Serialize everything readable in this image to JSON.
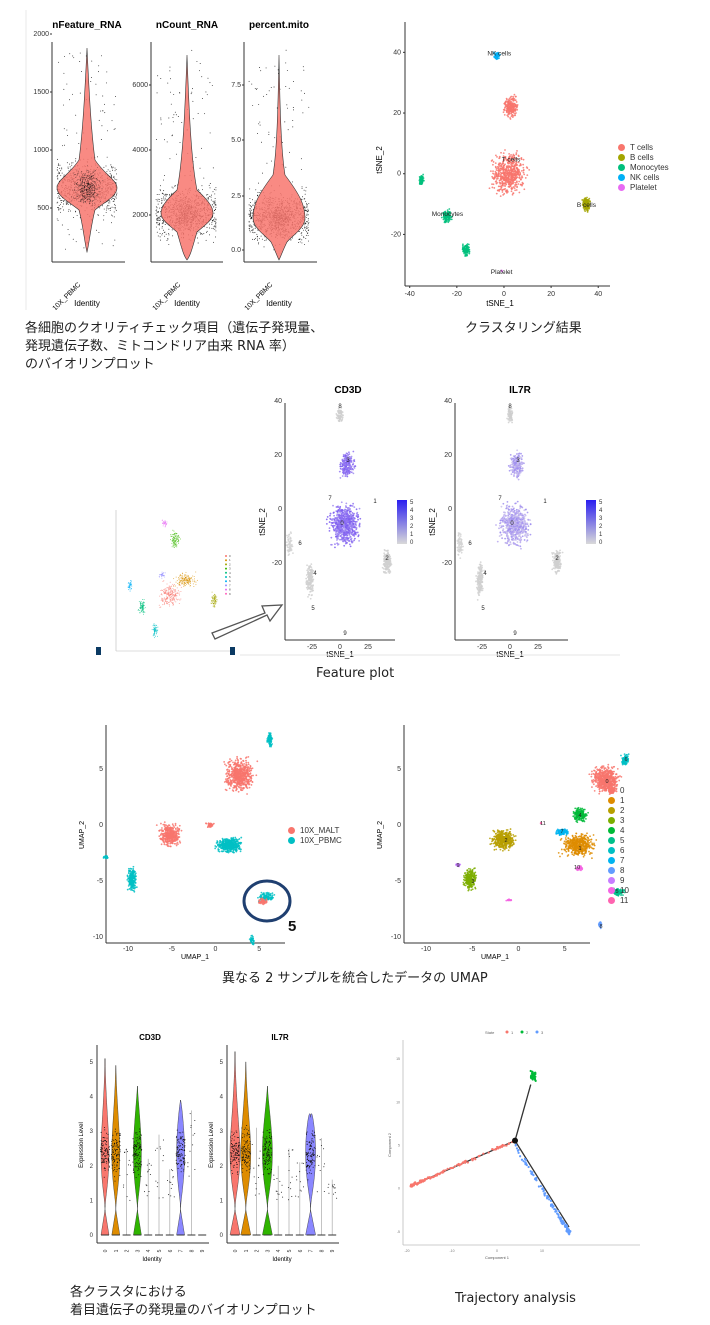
{
  "captions": {
    "qc_violin": [
      "各細胞のクオリティチェック項目（遺伝子発現量、",
      "発現遺伝子数、ミトコンドリア由来 RNA 率）",
      "のバイオリンプロット"
    ],
    "clustering": "クラスタリング結果",
    "feature_plot": "Feature plot",
    "umap": "異なる 2 サンプルを統合したデータの UMAP",
    "cluster_violin": [
      "各クラスタにおける",
      "着目遺伝子の発現量のバイオリンプロット"
    ],
    "trajectory": "Trajectory analysis"
  },
  "annotation": {
    "umap_circle_label": "5"
  },
  "chart_data": [
    {
      "id": "qc_violin",
      "type": "violin",
      "panels": [
        {
          "title": "nFeature_RNA",
          "yticks": [
            "500",
            "1000",
            "1500",
            "2000"
          ],
          "ylim": [
            200,
            2050
          ],
          "median": 820,
          "group": "10X_PBMC",
          "xlabel": "Identity"
        },
        {
          "title": "nCount_RNA",
          "yticks": [
            "2000",
            "4000",
            "6000"
          ],
          "ylim": [
            400,
            7000
          ],
          "median": 2100,
          "group": "10X_PBMC",
          "xlabel": "Identity"
        },
        {
          "title": "percent.mito",
          "yticks": [
            "0.0",
            "2.5",
            "5.0",
            "7.5"
          ],
          "ylim": [
            -0.3,
            9.3
          ],
          "median": 1.8,
          "group": "10X_PBMC",
          "xlabel": "Identity"
        }
      ],
      "fill_color": "#f8766d"
    },
    {
      "id": "tsne_clusters",
      "type": "scatter",
      "xlabel": "tSNE_1",
      "ylabel": "tSNE_2",
      "xticks": [
        "-40",
        "-20",
        "0",
        "20",
        "40"
      ],
      "yticks": [
        "-20",
        "0",
        "20",
        "40"
      ],
      "xlim": [
        -42,
        45
      ],
      "ylim": [
        -37,
        50
      ],
      "legend": [
        {
          "label": "T cells",
          "color": "#f8766d"
        },
        {
          "label": "B cells",
          "color": "#a3a500"
        },
        {
          "label": "Monocytes",
          "color": "#00bf7d"
        },
        {
          "label": "NK cells",
          "color": "#00b0f6"
        },
        {
          "label": "Platelet",
          "color": "#e76bf3"
        }
      ],
      "cluster_labels": [
        {
          "label": "NK cells",
          "x": -2,
          "y": 39
        },
        {
          "label": "T cells",
          "x": 3,
          "y": 4
        },
        {
          "label": "B cells",
          "x": 35,
          "y": -11
        },
        {
          "label": "Monocytes",
          "x": -24,
          "y": -14
        },
        {
          "label": "Platelet",
          "x": -1,
          "y": -33
        }
      ]
    },
    {
      "id": "feature_plot",
      "type": "scatter",
      "panels": [
        {
          "title": "CD3D",
          "xlabel": "tSNE_1",
          "ylabel": "tSNE_2",
          "xticks": [
            "-25",
            "0",
            "25"
          ],
          "yticks": [
            "-20",
            "0",
            "20",
            "40"
          ],
          "colorbar": [
            "5",
            "4",
            "3",
            "2",
            "1",
            "0"
          ]
        },
        {
          "title": "IL7R",
          "xlabel": "tSNE_1",
          "ylabel": "tSNE_2",
          "xticks": [
            "-25",
            "0",
            "25"
          ],
          "yticks": [
            "-20",
            "0",
            "20",
            "40"
          ],
          "colorbar": [
            "5",
            "4",
            "3",
            "2",
            "1",
            "0"
          ]
        }
      ],
      "cluster_labels": [
        "8",
        "3",
        "7",
        "1",
        "0",
        "6",
        "4",
        "2",
        "5",
        "9"
      ],
      "low_color": "#d9d9d9",
      "high_color": "#2a1ef0",
      "thumbnail_legend": [
        "0",
        "1",
        "2",
        "3",
        "4",
        "5",
        "6",
        "7",
        "8",
        "9"
      ]
    },
    {
      "id": "umap",
      "type": "scatter",
      "panels": [
        {
          "xlabel": "UMAP_1",
          "ylabel": "UMAP_2",
          "xticks": [
            "-10",
            "-5",
            "0",
            "5"
          ],
          "yticks": [
            "-10",
            "-5",
            "0",
            "5"
          ],
          "legend": [
            {
              "label": "10X_MALT",
              "color": "#f8766d"
            },
            {
              "label": "10X_PBMC",
              "color": "#00bfc4"
            }
          ]
        },
        {
          "xlabel": "UMAP_1",
          "ylabel": "UMAP_2",
          "xticks": [
            "-10",
            "-5",
            "0",
            "5"
          ],
          "yticks": [
            "-10",
            "-5",
            "0",
            "5"
          ],
          "legend": [
            {
              "label": "0",
              "color": "#f8766d"
            },
            {
              "label": "1",
              "color": "#de8c00"
            },
            {
              "label": "2",
              "color": "#b79f00"
            },
            {
              "label": "3",
              "color": "#7cae00"
            },
            {
              "label": "4",
              "color": "#00ba38"
            },
            {
              "label": "5",
              "color": "#00c08b"
            },
            {
              "label": "6",
              "color": "#00bfc4"
            },
            {
              "label": "7",
              "color": "#00b4f0"
            },
            {
              "label": "8",
              "color": "#619cff"
            },
            {
              "label": "9",
              "color": "#c77cff"
            },
            {
              "label": "10",
              "color": "#f564e3"
            },
            {
              "label": "11",
              "color": "#ff64b0"
            }
          ]
        }
      ]
    },
    {
      "id": "cluster_violin",
      "type": "violin",
      "panels": [
        {
          "title": "CD3D",
          "ylabel": "Expression Level",
          "xlabel": "Identity",
          "yticks": [
            "0",
            "1",
            "2",
            "3",
            "4",
            "5"
          ],
          "categories": [
            "0",
            "1",
            "2",
            "3",
            "4",
            "5",
            "6",
            "7",
            "8",
            "9"
          ],
          "max": [
            5.1,
            4.9,
            2.5,
            4.3,
            2.2,
            2.9,
            1.9,
            3.9,
            3.6,
            0.0
          ]
        },
        {
          "title": "IL7R",
          "ylabel": "Expression Level",
          "xlabel": "Identity",
          "yticks": [
            "0",
            "1",
            "2",
            "3",
            "4",
            "5"
          ],
          "categories": [
            "0",
            "1",
            "2",
            "3",
            "4",
            "5",
            "6",
            "7",
            "8",
            "9"
          ],
          "max": [
            5.3,
            5.0,
            3.1,
            4.3,
            2.0,
            2.5,
            2.1,
            3.4,
            2.8,
            1.6
          ]
        }
      ],
      "colors": [
        "#f8766d",
        "#de8c00",
        "#7f7f7f",
        "#2fb400",
        "#7f7f7f",
        "#7f7f7f",
        "#7f7f7f",
        "#8a87ff",
        "#7f7f7f",
        "#7f7f7f"
      ]
    },
    {
      "id": "trajectory",
      "type": "scatter",
      "xlabel": "Component 1",
      "ylabel": "Component 2",
      "xticks": [
        "-20",
        "-10",
        "0",
        "10"
      ],
      "yticks": [
        "-5",
        "0",
        "5",
        "10",
        "15"
      ],
      "legend_title": "State",
      "legend": [
        {
          "label": "1",
          "color": "#f8766d"
        },
        {
          "label": "2",
          "color": "#00ba38"
        },
        {
          "label": "3",
          "color": "#619cff"
        }
      ],
      "branch_point": {
        "x": 4,
        "y": 5.5
      }
    }
  ]
}
